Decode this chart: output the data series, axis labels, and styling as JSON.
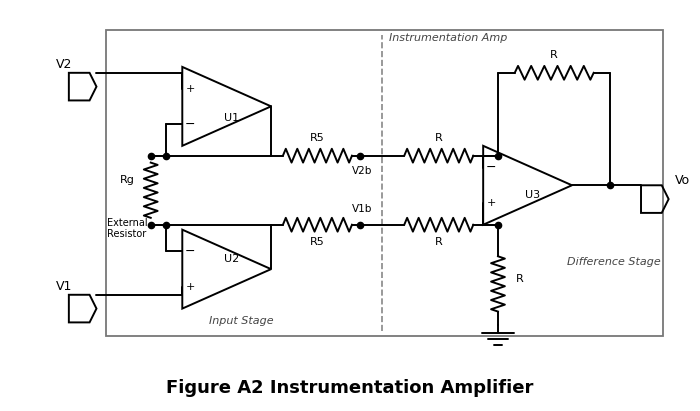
{
  "title": "Figure A2 Instrumentation Amplifier",
  "title_fontsize": 13,
  "fig_width": 7.0,
  "fig_height": 4.11,
  "background_color": "#ffffff",
  "line_color": "#000000",
  "box_edge_color": "#888888",
  "label_instr_amp": "Instrumentation Amp",
  "label_input_stage": "Input Stage",
  "label_diff_stage": "Difference Stage",
  "label_V2": "V2",
  "label_V1": "V1",
  "label_Vo": "Vo",
  "label_Rg": "Rg",
  "label_ext_res": "External\nResistor",
  "label_R5_top": "R5",
  "label_R5_bot": "R5",
  "label_R_mid_top": "R",
  "label_R_mid_bot": "R",
  "label_R_fb": "R",
  "label_R_gnd": "R",
  "label_V2b": "V2b",
  "label_V1b": "V1b",
  "label_U1": "U1",
  "label_U2": "U2",
  "label_U3": "U3"
}
